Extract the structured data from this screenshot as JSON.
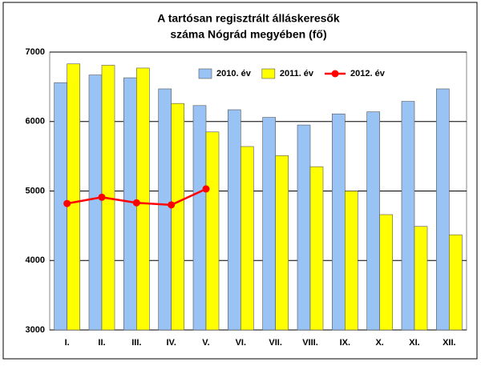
{
  "chart_data": {
    "type": "bar",
    "title": [
      "A tartósan regisztrált álláskeresők",
      "száma Nógrád megyében (fő)"
    ],
    "categories": [
      "I.",
      "II.",
      "III.",
      "IV.",
      "V.",
      "VI.",
      "VII.",
      "VIII.",
      "IX.",
      "X.",
      "XI.",
      "XII."
    ],
    "series": [
      {
        "name": "2010. év",
        "type": "bar",
        "color": "#99c2f5",
        "values": [
          6560,
          6670,
          6630,
          6470,
          6230,
          6170,
          6060,
          5950,
          6110,
          6140,
          6290,
          6470
        ]
      },
      {
        "name": "2011. év",
        "type": "bar",
        "color": "#ffff00",
        "values": [
          6830,
          6810,
          6770,
          6260,
          5850,
          5640,
          5510,
          5350,
          5000,
          4660,
          4490,
          4370
        ]
      },
      {
        "name": "2012. év",
        "type": "line",
        "color": "#ff0000",
        "values": [
          4820,
          4910,
          4830,
          4800,
          5030,
          null,
          null,
          null,
          null,
          null,
          null,
          null
        ]
      }
    ],
    "ylim": [
      3000,
      7000
    ],
    "yticks": [
      3000,
      4000,
      5000,
      6000,
      7000
    ],
    "grid": true,
    "legend": "top-right"
  }
}
